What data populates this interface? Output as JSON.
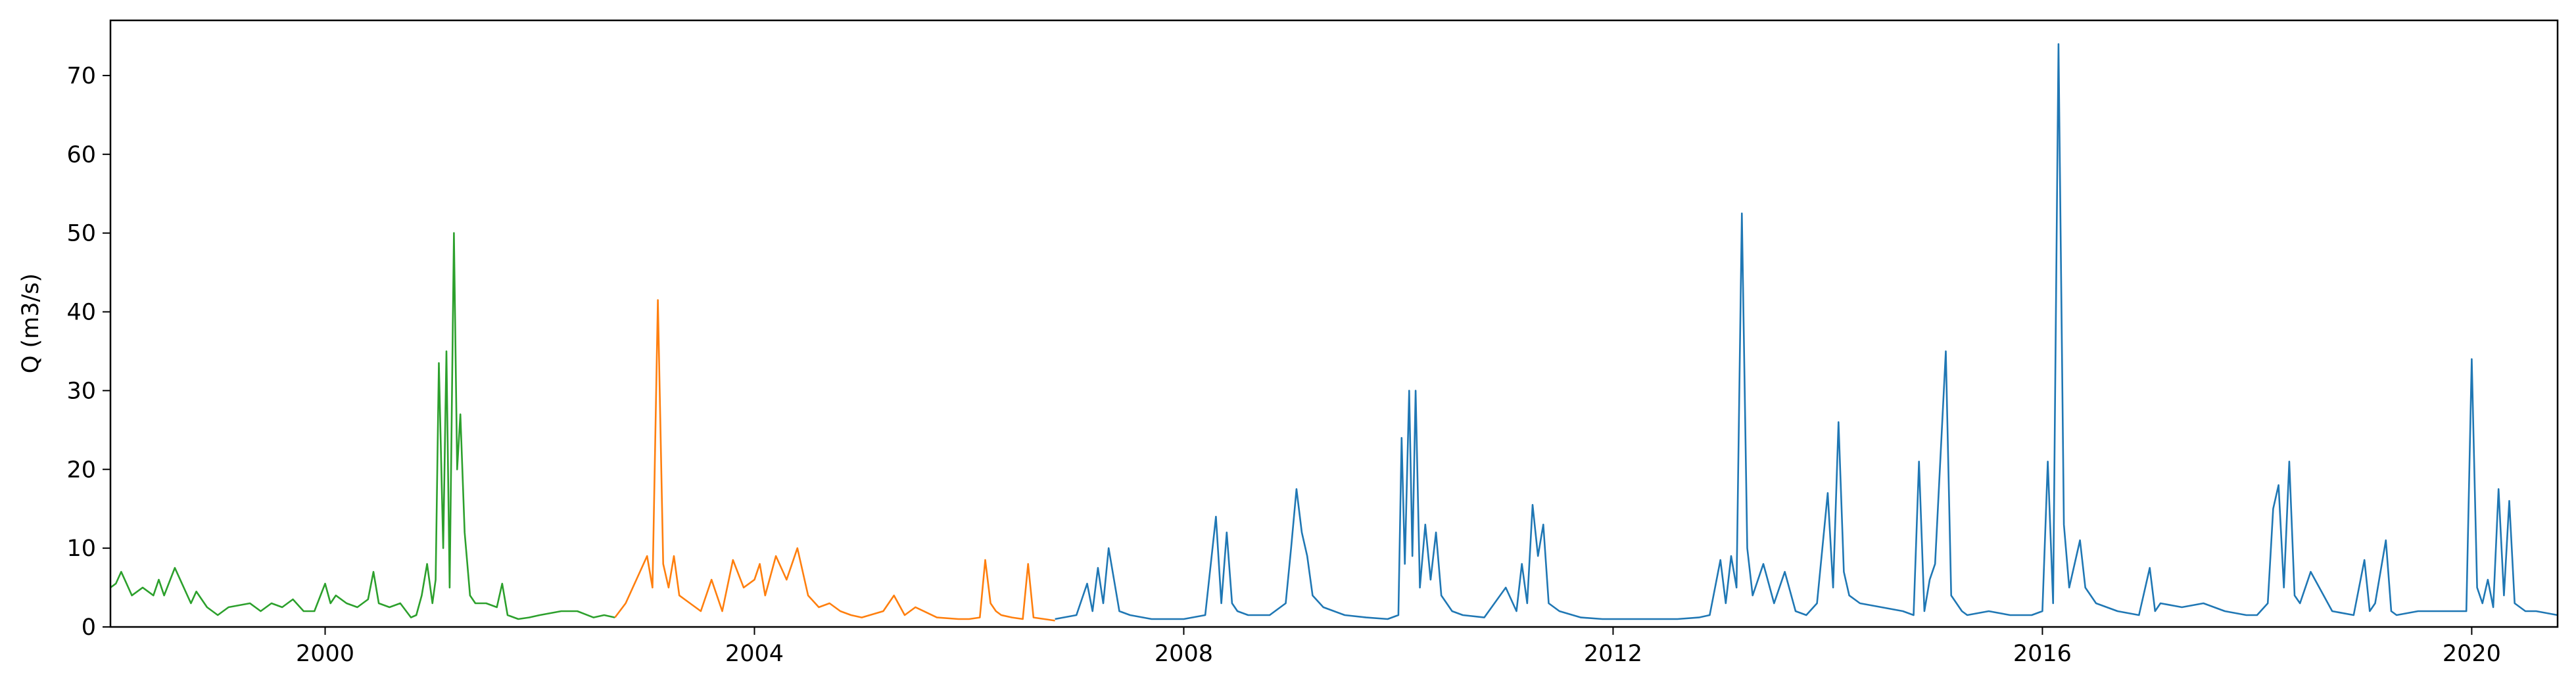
{
  "chart_data": {
    "type": "line",
    "title": "",
    "xlabel": "",
    "ylabel": "Q (m3/s)",
    "xlim": [
      1998.0,
      2020.8
    ],
    "ylim": [
      0,
      77
    ],
    "x_ticks": [
      "2000",
      "2004",
      "2008",
      "2012",
      "2016",
      "2020"
    ],
    "x_tick_values": [
      2000,
      2004,
      2008,
      2012,
      2016,
      2020
    ],
    "y_ticks": [
      "0",
      "10",
      "20",
      "30",
      "40",
      "50",
      "60",
      "70"
    ],
    "y_tick_values": [
      0,
      10,
      20,
      30,
      40,
      50,
      60,
      70
    ],
    "grid": false,
    "series": [
      {
        "color": "#2ca02c",
        "x": [
          1998.0,
          1998.05,
          1998.1,
          1998.15,
          1998.2,
          1998.3,
          1998.4,
          1998.45,
          1998.5,
          1998.6,
          1998.75,
          1998.8,
          1998.9,
          1999.0,
          1999.1,
          1999.3,
          1999.4,
          1999.5,
          1999.6,
          1999.7,
          1999.8,
          1999.9,
          2000.0,
          2000.05,
          2000.1,
          2000.2,
          2000.3,
          2000.4,
          2000.45,
          2000.5,
          2000.6,
          2000.7,
          2000.8,
          2000.85,
          2000.9,
          2000.95,
          2001.0,
          2001.03,
          2001.06,
          2001.1,
          2001.13,
          2001.16,
          2001.2,
          2001.23,
          2001.26,
          2001.3,
          2001.35,
          2001.4,
          2001.5,
          2001.6,
          2001.65,
          2001.7,
          2001.8,
          2001.9,
          2002.0,
          2002.2,
          2002.35,
          2002.5,
          2002.6,
          2002.7
        ],
        "values": [
          5,
          5.5,
          7,
          5.5,
          4,
          5,
          4,
          6,
          4,
          7.5,
          3,
          4.5,
          2.5,
          1.5,
          2.5,
          3,
          2,
          3,
          2.5,
          3.5,
          2,
          2,
          5.5,
          3,
          4,
          3,
          2.5,
          3.5,
          7,
          3,
          2.5,
          3,
          1.2,
          1.5,
          4,
          8,
          3,
          6,
          33.5,
          10,
          35,
          5,
          50,
          20,
          27,
          12,
          4,
          3,
          3,
          2.5,
          5.5,
          1.5,
          1,
          1.2,
          1.5,
          2,
          2,
          1.2,
          1.5,
          1.2
        ]
      },
      {
        "color": "#ff7f0e",
        "x": [
          2002.7,
          2002.8,
          2002.9,
          2003.0,
          2003.05,
          2003.1,
          2003.15,
          2003.2,
          2003.25,
          2003.3,
          2003.4,
          2003.5,
          2003.6,
          2003.7,
          2003.8,
          2003.9,
          2004.0,
          2004.05,
          2004.1,
          2004.2,
          2004.3,
          2004.4,
          2004.5,
          2004.6,
          2004.7,
          2004.8,
          2004.9,
          2005.0,
          2005.2,
          2005.3,
          2005.4,
          2005.5,
          2005.7,
          2005.9,
          2006.0,
          2006.1,
          2006.15,
          2006.2,
          2006.25,
          2006.3,
          2006.4,
          2006.5,
          2006.55,
          2006.6,
          2006.7,
          2006.8
        ],
        "values": [
          1.2,
          3,
          6,
          9,
          5,
          41.5,
          8,
          5,
          9,
          4,
          3,
          2,
          6,
          2,
          8.5,
          5,
          6,
          8,
          4,
          9,
          6,
          10,
          4,
          2.5,
          3,
          2,
          1.5,
          1.2,
          2,
          4,
          1.5,
          2.5,
          1.2,
          1,
          1,
          1.2,
          8.5,
          3,
          2,
          1.5,
          1.2,
          1,
          8,
          1.2,
          1,
          0.8
        ]
      },
      {
        "color": "#1f77b4",
        "x": [
          2006.8,
          2007.0,
          2007.1,
          2007.15,
          2007.2,
          2007.25,
          2007.3,
          2007.4,
          2007.5,
          2007.7,
          2008.0,
          2008.2,
          2008.3,
          2008.35,
          2008.4,
          2008.45,
          2008.5,
          2008.6,
          2008.8,
          2008.95,
          2009.0,
          2009.05,
          2009.1,
          2009.15,
          2009.2,
          2009.3,
          2009.4,
          2009.5,
          2009.7,
          2009.9,
          2010.0,
          2010.03,
          2010.06,
          2010.1,
          2010.13,
          2010.16,
          2010.2,
          2010.25,
          2010.3,
          2010.35,
          2010.4,
          2010.5,
          2010.6,
          2010.8,
          2011.0,
          2011.1,
          2011.15,
          2011.2,
          2011.25,
          2011.3,
          2011.35,
          2011.4,
          2011.5,
          2011.7,
          2011.9,
          2012.2,
          2012.4,
          2012.6,
          2012.8,
          2012.9,
          2013.0,
          2013.05,
          2013.1,
          2013.15,
          2013.2,
          2013.25,
          2013.3,
          2013.4,
          2013.5,
          2013.6,
          2013.7,
          2013.8,
          2013.9,
          2014.0,
          2014.05,
          2014.1,
          2014.15,
          2014.2,
          2014.3,
          2014.5,
          2014.7,
          2014.8,
          2014.85,
          2014.9,
          2014.95,
          2015.0,
          2015.1,
          2015.15,
          2015.2,
          2015.25,
          2015.3,
          2015.5,
          2015.7,
          2015.9,
          2016.0,
          2016.05,
          2016.1,
          2016.15,
          2016.2,
          2016.25,
          2016.3,
          2016.35,
          2016.4,
          2016.5,
          2016.7,
          2016.9,
          2017.0,
          2017.05,
          2017.1,
          2017.3,
          2017.5,
          2017.7,
          2017.9,
          2018.0,
          2018.1,
          2018.15,
          2018.2,
          2018.25,
          2018.3,
          2018.35,
          2018.4,
          2018.5,
          2018.7,
          2018.9,
          2019.0,
          2019.05,
          2019.1,
          2019.2,
          2019.25,
          2019.3,
          2019.5,
          2019.7,
          2019.9,
          2019.95,
          2020.0,
          2020.05,
          2020.1,
          2020.15,
          2020.2,
          2020.25,
          2020.3,
          2020.35,
          2020.4,
          2020.5,
          2020.6,
          2020.8
        ],
        "values": [
          1,
          1.5,
          5.5,
          2,
          7.5,
          3,
          10,
          2,
          1.5,
          1,
          1,
          1.5,
          14,
          3,
          12,
          3,
          2,
          1.5,
          1.5,
          3,
          10,
          17.5,
          12,
          9,
          4,
          2.5,
          2,
          1.5,
          1.2,
          1,
          1.5,
          24,
          8,
          30,
          9,
          30,
          5,
          13,
          6,
          12,
          4,
          2,
          1.5,
          1.2,
          5,
          2,
          8,
          3,
          15.5,
          9,
          13,
          3,
          2,
          1.2,
          1,
          1,
          1,
          1,
          1.2,
          1.5,
          8.5,
          3,
          9,
          5,
          52.5,
          10,
          4,
          8,
          3,
          7,
          2,
          1.5,
          3,
          17,
          5,
          26,
          7,
          4,
          3,
          2.5,
          2,
          1.5,
          21,
          2,
          6,
          8,
          35,
          4,
          3,
          2,
          1.5,
          2,
          1.5,
          1.5,
          2,
          21,
          3,
          74,
          13,
          5,
          8,
          11,
          5,
          3,
          2,
          1.5,
          7.5,
          2,
          3,
          2.5,
          3,
          2,
          1.5,
          1.5,
          3,
          15,
          18,
          5,
          21,
          4,
          3,
          7,
          2,
          1.5,
          8.5,
          2,
          3,
          11,
          2,
          1.5,
          2,
          2,
          2,
          2,
          34,
          5,
          3,
          6,
          2.5,
          17.5,
          4,
          16,
          3,
          2,
          2,
          1.5
        ]
      }
    ]
  }
}
